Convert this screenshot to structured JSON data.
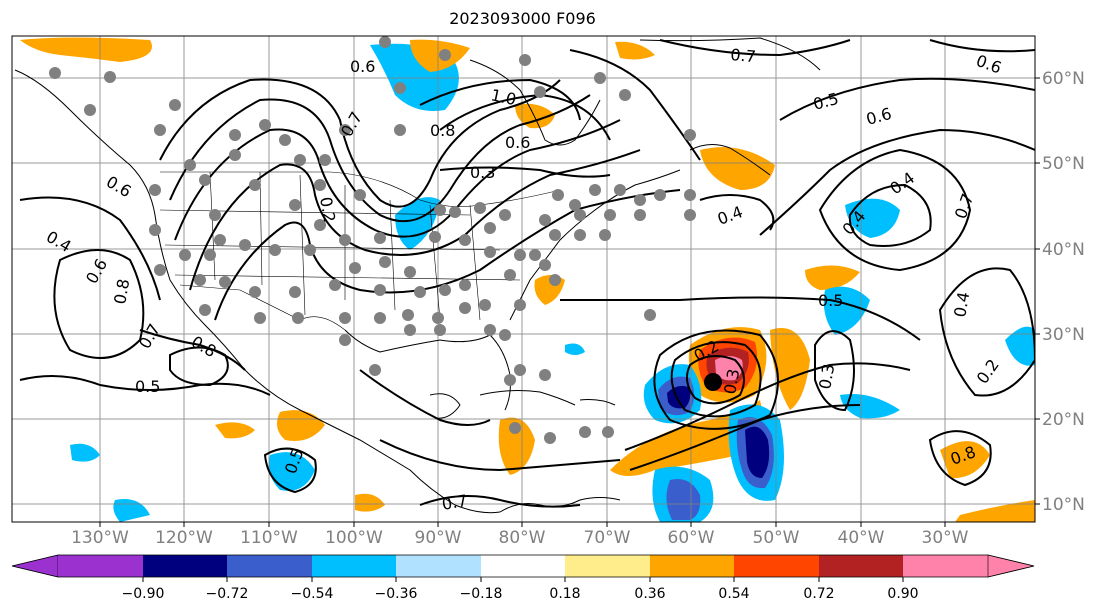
{
  "title": "2023093000 F096",
  "lon_labels": [
    "130°W",
    "120°W",
    "110°W",
    "100°W",
    "90°W",
    "80°W",
    "70°W",
    "60°W",
    "50°W",
    "40°W",
    "30°W"
  ],
  "lat_labels": [
    "60°N",
    "50°N",
    "40°N",
    "30°N",
    "20°N",
    "10°N"
  ],
  "colorbar": {
    "ticks": [
      "−0.90",
      "−0.72",
      "−0.54",
      "−0.36",
      "−0.18",
      "0.18",
      "0.36",
      "0.54",
      "0.72",
      "0.90"
    ],
    "colors": [
      "#9b32d0",
      "#00007f",
      "#3a5fcd",
      "#00bfff",
      "#b0e2ff",
      "#ffffff",
      "#ffec8b",
      "#ffa500",
      "#ff4500",
      "#b22222",
      "#ff82ab"
    ]
  },
  "contour_labels": [
    "0.6",
    "1.0",
    "0.8",
    "0.7",
    "0.6",
    "0.3",
    "0.2",
    "0.6",
    "0.4",
    "0.6",
    "0.8",
    "0.7",
    "0.8",
    "0.5",
    "0.5",
    "0.6",
    "0.7",
    "0.6",
    "0.4",
    "0.4",
    "0.4",
    "0.7",
    "0.5",
    "0.4",
    "0.2",
    "0.3",
    "0.2",
    "0.3",
    "0.8",
    "0.7",
    "0.5",
    "0.8",
    "0.6",
    "0.7"
  ],
  "colors": {
    "contour": "#000000",
    "station": "#808080",
    "coast": "#000000",
    "grid": "#808080",
    "positive": "#ffa500",
    "negative": "#00bfff"
  }
}
